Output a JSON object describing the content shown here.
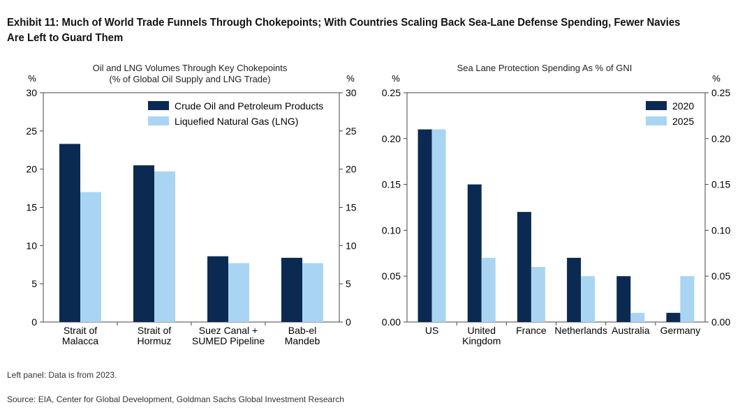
{
  "title": "Exhibit 11: Much of World Trade Funnels Through Chokepoints; With Countries Scaling Back Sea-Lane Defense Spending, Fewer Navies Are Left to Guard Them",
  "chart_data": [
    {
      "type": "bar",
      "title": "Oil and LNG Volumes Through Key Chokepoints",
      "subtitle": "(% of Global Oil Supply and LNG Trade)",
      "ylabel_left": "%",
      "ylabel_right": "%",
      "ylim": [
        0,
        30
      ],
      "yticks": [
        "0",
        "5",
        "10",
        "15",
        "20",
        "25",
        "30"
      ],
      "categories": [
        [
          "Strait of",
          "Malacca"
        ],
        [
          "Strait of",
          "Hormuz"
        ],
        [
          "Suez Canal +",
          "SUMED Pipeline"
        ],
        [
          "Bab-el",
          "Mandeb"
        ]
      ],
      "series": [
        {
          "name": "Crude Oil and Petroleum Products",
          "color": "#0b2a52",
          "values": [
            23.3,
            20.5,
            8.6,
            8.4
          ]
        },
        {
          "name": "Liquefied Natural Gas (LNG)",
          "color": "#a9d5f2",
          "values": [
            17.0,
            19.7,
            7.7,
            7.7
          ]
        }
      ],
      "legend": "top-right"
    },
    {
      "type": "bar",
      "title": "Sea Lane Protection Spending As % of GNI",
      "ylabel_left": "%",
      "ylabel_right": "%",
      "ylim": [
        0,
        0.25
      ],
      "yticks": [
        "0.00",
        "0.05",
        "0.10",
        "0.15",
        "0.20",
        "0.25"
      ],
      "categories": [
        [
          "US"
        ],
        [
          "United",
          "Kingdom"
        ],
        [
          "France"
        ],
        [
          "Netherlands"
        ],
        [
          "Australia"
        ],
        [
          "Germany"
        ]
      ],
      "series": [
        {
          "name": "2020",
          "color": "#0b2a52",
          "values": [
            0.21,
            0.15,
            0.12,
            0.07,
            0.05,
            0.01
          ]
        },
        {
          "name": "2025",
          "color": "#a9d5f2",
          "values": [
            0.21,
            0.07,
            0.06,
            0.05,
            0.01,
            0.05
          ]
        }
      ],
      "legend": "top-right"
    }
  ],
  "notes": {
    "left_panel": "Left panel: Data is from 2023.",
    "source": "Source: EIA, Center for Global Development, Goldman Sachs Global Investment Research"
  }
}
